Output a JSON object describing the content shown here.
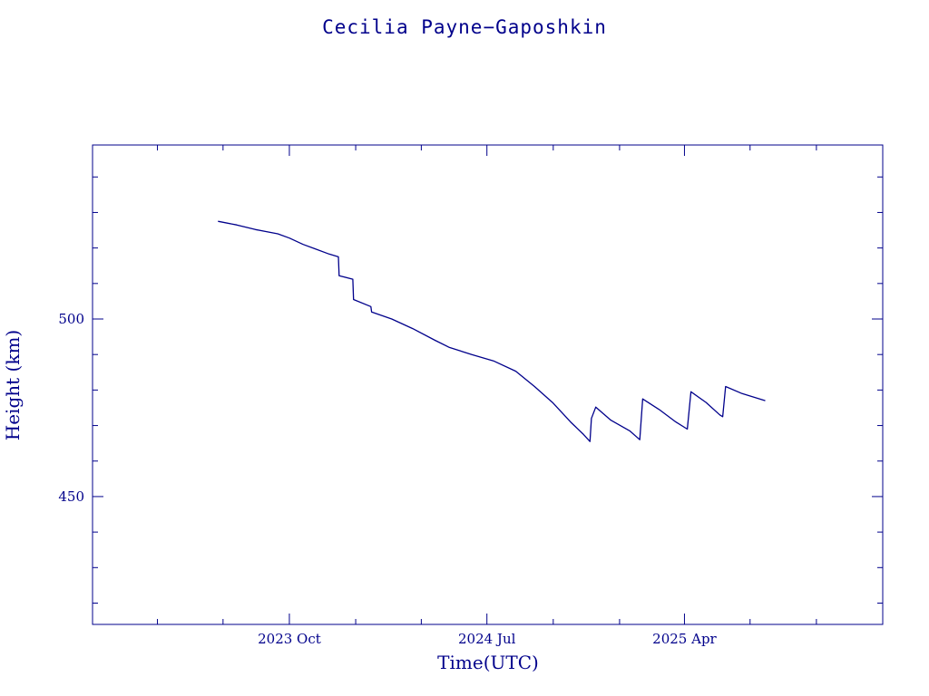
{
  "chart_data": {
    "type": "line",
    "title": "Cecilia Payne−Gaposhkin",
    "xlabel": "Time(UTC)",
    "ylabel": "Height (km)",
    "xlim": [
      "2023-01-01",
      "2026-01-01"
    ],
    "ylim": [
      414,
      549
    ],
    "x_ticks": [
      {
        "date": "2023-10-01",
        "label": "2023 Oct"
      },
      {
        "date": "2024-07-01",
        "label": "2024 Jul"
      },
      {
        "date": "2025-04-01",
        "label": "2025 Apr"
      }
    ],
    "y_ticks": [
      450,
      500
    ],
    "grid": false,
    "line_color": "#00008b",
    "series": [
      {
        "points": [
          [
            "2023-06-24",
            527.5
          ],
          [
            "2023-07-20",
            526.5
          ],
          [
            "2023-08-15",
            525.2
          ],
          [
            "2023-09-15",
            524.0
          ],
          [
            "2023-10-01",
            522.8
          ],
          [
            "2023-10-20",
            521.0
          ],
          [
            "2023-11-05",
            519.8
          ],
          [
            "2023-11-25",
            518.3
          ],
          [
            "2023-12-08",
            517.5
          ],
          [
            "2023-12-09",
            512.2
          ],
          [
            "2023-12-28",
            511.2
          ],
          [
            "2023-12-29",
            505.5
          ],
          [
            "2024-01-22",
            503.5
          ],
          [
            "2024-01-23",
            502.0
          ],
          [
            "2024-02-20",
            500.0
          ],
          [
            "2024-03-20",
            497.3
          ],
          [
            "2024-04-20",
            494.0
          ],
          [
            "2024-05-10",
            492.0
          ],
          [
            "2024-06-10",
            490.0
          ],
          [
            "2024-07-10",
            488.2
          ],
          [
            "2024-08-10",
            485.3
          ],
          [
            "2024-09-05",
            481.0
          ],
          [
            "2024-09-30",
            476.5
          ],
          [
            "2024-10-25",
            471.0
          ],
          [
            "2024-11-12",
            467.5
          ],
          [
            "2024-11-21",
            465.5
          ],
          [
            "2024-11-23",
            472.0
          ],
          [
            "2024-11-29",
            475.2
          ],
          [
            "2024-12-20",
            471.5
          ],
          [
            "2025-01-15",
            468.5
          ],
          [
            "2025-01-29",
            466.0
          ],
          [
            "2025-02-02",
            477.5
          ],
          [
            "2025-02-25",
            474.5
          ],
          [
            "2025-03-20",
            471.0
          ],
          [
            "2025-04-05",
            469.0
          ],
          [
            "2025-04-10",
            479.5
          ],
          [
            "2025-05-01",
            476.5
          ],
          [
            "2025-05-20",
            473.0
          ],
          [
            "2025-05-24",
            472.5
          ],
          [
            "2025-05-28",
            481.0
          ],
          [
            "2025-06-20",
            479.0
          ],
          [
            "2025-07-22",
            477.0
          ]
        ]
      }
    ]
  }
}
